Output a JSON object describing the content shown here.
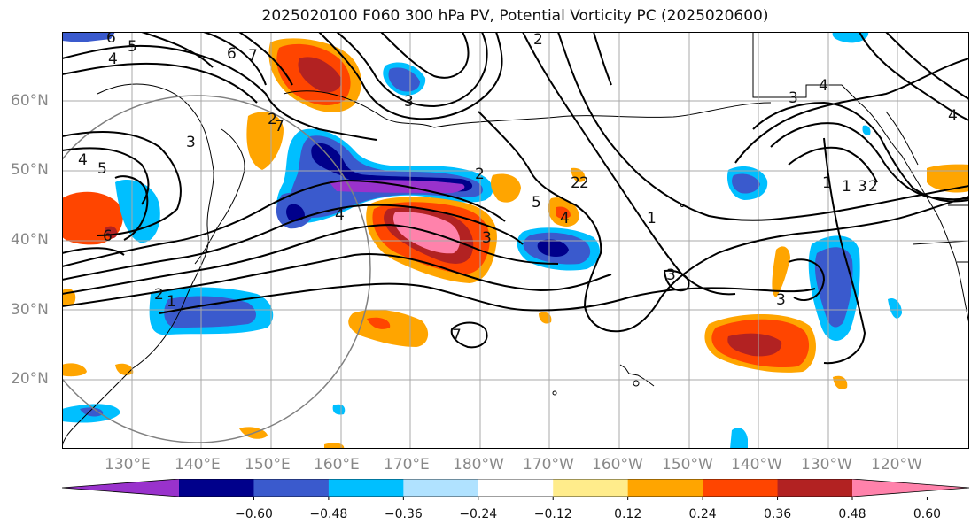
{
  "title": "2025020100 F060 300 hPa PV, Potential Vorticity PC (2025020600)",
  "map": {
    "lat_labels": [
      "60°N",
      "50°N",
      "40°N",
      "30°N",
      "20°N"
    ],
    "lon_labels": [
      "130°E",
      "140°E",
      "150°E",
      "160°E",
      "170°E",
      "180°W",
      "170°W",
      "160°W",
      "150°W",
      "140°W",
      "130°W",
      "120°W"
    ],
    "contour_labels": [
      "6",
      "5",
      "4",
      "7",
      "6",
      "3",
      "4",
      "5",
      "6",
      "2",
      "3",
      "4",
      "2",
      "5",
      "4",
      "3",
      "2",
      "1",
      "3",
      "1",
      "2",
      "1",
      "3",
      "4",
      "4",
      "2",
      "1",
      "7",
      "3",
      "3",
      "2",
      "2",
      "7"
    ]
  },
  "colorbar": {
    "colors": [
      "#9932CC",
      "#00008B",
      "#3A5ACD",
      "#00BFFF",
      "#B0E2FF",
      "#FFFFFF",
      "#FFEC8B",
      "#FFA500",
      "#FF4500",
      "#B22222",
      "#FF82AB"
    ],
    "tick_labels": [
      "−0.60",
      "−0.48",
      "−0.36",
      "−0.24",
      "−0.12",
      "0.12",
      "0.24",
      "0.36",
      "0.48",
      "0.60"
    ]
  },
  "colors": {
    "contour": "#000000",
    "grid": "#a9a9a9",
    "coast": "#000000"
  }
}
